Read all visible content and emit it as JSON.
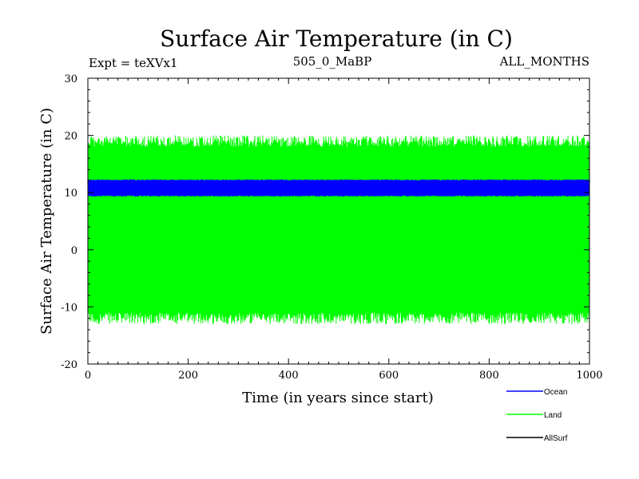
{
  "chart_data": {
    "type": "line",
    "title": "Surface Air Temperature (in C)",
    "subtitle_left": "Expt = teXVx1",
    "subtitle_center": "505_0_MaBP",
    "subtitle_right": "ALL_MONTHS",
    "xlabel": "Time (in years since start)",
    "ylabel": "Surface Air Temperature (in C)",
    "xlim": [
      0,
      1000
    ],
    "ylim": [
      -20,
      30
    ],
    "x_ticks": [
      "0",
      "200",
      "400",
      "600",
      "800",
      "1000"
    ],
    "y_ticks": [
      "-20",
      "-10",
      "0",
      "10",
      "20",
      "30"
    ],
    "legend_position": "bottom-right",
    "series": [
      {
        "name": "Land",
        "color": "#00ff00",
        "mean": 3.5,
        "min": -13,
        "max": 20,
        "description": "seasonal oscillation between about -12 and 19.5"
      },
      {
        "name": "Ocean",
        "color": "#0000ff",
        "mean": 10.8,
        "min": 9.3,
        "max": 12.3,
        "description": "seasonal oscillation between about 9.5 and 12"
      },
      {
        "name": "AllSurf",
        "color": "#000000",
        "mean": null,
        "min": null,
        "max": null,
        "description": "not visible in plot"
      }
    ]
  }
}
